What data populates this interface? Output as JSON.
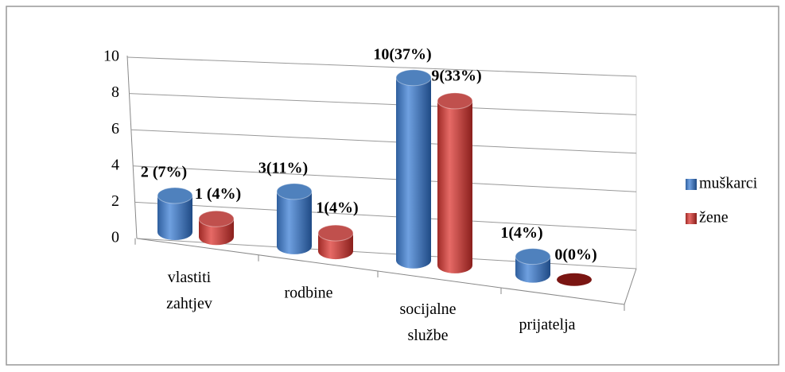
{
  "chart_data": {
    "type": "bar3d",
    "categories": [
      "vlastiti zahtjev",
      "rodbine",
      "socijalne službe",
      "prijatelja"
    ],
    "series": [
      {
        "name": "muškarci",
        "color": "#4f81bd",
        "values": [
          2,
          3,
          10,
          1
        ],
        "value_labels": [
          "2 (7%)",
          "3(11%)",
          "10(37%)",
          "1(4%)"
        ]
      },
      {
        "name": "žene",
        "color": "#c0504d",
        "values": [
          1,
          1,
          9,
          0
        ],
        "value_labels": [
          "1 (4%)",
          "1(4%)",
          "9(33%)",
          "0(0%)"
        ]
      }
    ],
    "ylim": [
      0,
      10
    ],
    "yticks": [
      0,
      2,
      4,
      6,
      8,
      10
    ],
    "grid": true,
    "legend": "right"
  }
}
